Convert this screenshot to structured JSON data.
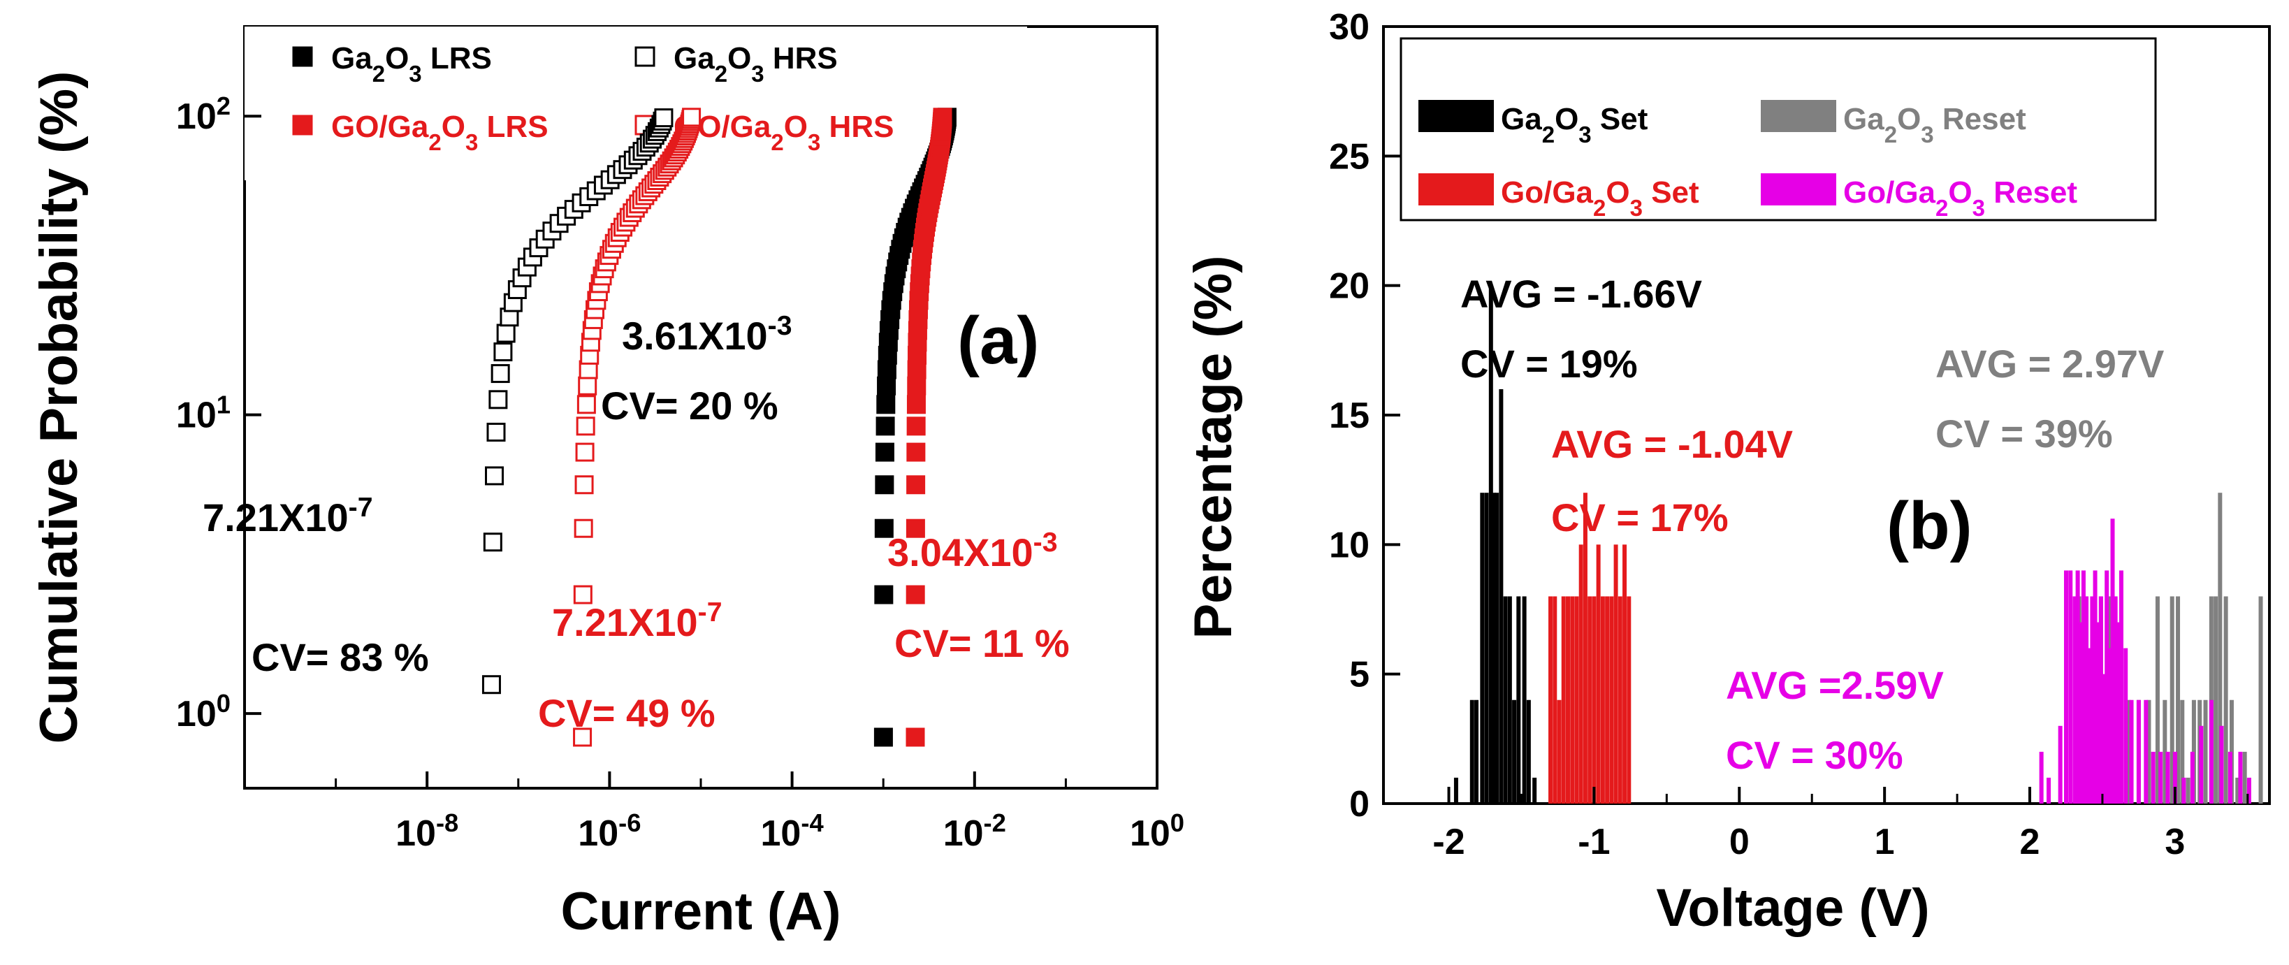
{
  "chart_data": [
    {
      "panel": "(a)",
      "type": "scatter",
      "xlabel": "Current (A)",
      "ylabel": "Cumulative Probability (%)",
      "x_scale": "log",
      "y_scale": "log",
      "xlim_exp": [
        -10,
        0
      ],
      "ylim_exp": [
        -0.25,
        2.3
      ],
      "x_ticks": [
        {
          "exp": -8,
          "label": "10",
          "sup": "-8"
        },
        {
          "exp": -6,
          "label": "10",
          "sup": "-6"
        },
        {
          "exp": -4,
          "label": "10",
          "sup": "-4"
        },
        {
          "exp": -2,
          "label": "10",
          "sup": "-2"
        },
        {
          "exp": 0,
          "label": "10",
          "sup": "0"
        }
      ],
      "y_ticks": [
        {
          "exp": 0,
          "label": "10",
          "sup": "0"
        },
        {
          "exp": 1,
          "label": "10",
          "sup": "1"
        },
        {
          "exp": 2,
          "label": "10",
          "sup": "2"
        }
      ],
      "legend": [
        {
          "pre": "Ga",
          "sub1": "2",
          "mid": "O",
          "sub2": "3",
          "post": " LRS",
          "color": "#000000",
          "filled": true
        },
        {
          "pre": "Ga",
          "sub1": "2",
          "mid": "O",
          "sub2": "3",
          "post": " HRS",
          "color": "#000000",
          "filled": false
        },
        {
          "pre": "GO/Ga",
          "sub1": "2",
          "mid": "O",
          "sub2": "3",
          "post": " LRS",
          "color": "#e41a1c",
          "filled": true
        },
        {
          "pre": "GO/Ga",
          "sub1": "2",
          "mid": "O",
          "sub2": "3",
          "post": " HRS",
          "color": "#e41a1c",
          "filled": false
        }
      ],
      "series": [
        {
          "name": "Ga2O3 LRS",
          "color": "#000000",
          "filled": true,
          "log_x_min": -3.0,
          "log_x_max": -2.3,
          "n": 60
        },
        {
          "name": "Ga2O3 HRS",
          "color": "#000000",
          "filled": false,
          "log_x_min": -7.3,
          "log_x_max": -5.4,
          "n": 40
        },
        {
          "name": "GO/Ga2O3 LRS",
          "color": "#e41a1c",
          "filled": true,
          "log_x_min": -2.65,
          "log_x_max": -2.35,
          "n": 60
        },
        {
          "name": "GO/Ga2O3 HRS",
          "color": "#e41a1c",
          "filled": false,
          "log_x_min": -6.3,
          "log_x_max": -5.1,
          "n": 60
        }
      ],
      "annotations": [
        {
          "base": "3.61X10",
          "sup": "-3",
          "color": "#000000"
        },
        {
          "text": "CV= 20 %",
          "color": "#000000"
        },
        {
          "base": "7.21X10",
          "sup": "-7",
          "color": "#000000"
        },
        {
          "text": "CV= 83 %",
          "color": "#000000"
        },
        {
          "base": "7.21X10",
          "sup": "-7",
          "color": "#e41a1c"
        },
        {
          "text": "CV= 49 %",
          "color": "#e41a1c"
        },
        {
          "base": "3.04X10",
          "sup": "-3",
          "color": "#e41a1c"
        },
        {
          "text": "CV= 11 %",
          "color": "#e41a1c"
        }
      ]
    },
    {
      "panel": "(b)",
      "type": "bar",
      "xlabel": "Voltage (V)",
      "ylabel": "Percentage (%)",
      "xlim": [
        -2.45,
        3.65
      ],
      "ylim": [
        0,
        30
      ],
      "x_ticks": [
        "-2",
        "-1",
        "0",
        "1",
        "2",
        "3"
      ],
      "y_ticks": [
        "0",
        "5",
        "10",
        "15",
        "20",
        "25",
        "30"
      ],
      "legend": [
        {
          "pre": "Ga",
          "sub1": "2",
          "mid": "O",
          "sub2": "3",
          "post": " Set",
          "color": "#000000"
        },
        {
          "pre": "Ga",
          "sub1": "2",
          "mid": "O",
          "sub2": "3",
          "post": " Reset",
          "color": "#808080"
        },
        {
          "pre": "Go/Ga",
          "sub1": "2",
          "mid": "O",
          "sub2": "3",
          "post": " Set",
          "color": "#e41a1c"
        },
        {
          "pre": "Go/Ga",
          "sub1": "2",
          "mid": "O",
          "sub2": "3",
          "post": " Reset",
          "color": "#e600e6"
        }
      ],
      "series": [
        {
          "name": "Ga2O3 Set",
          "color": "#000000",
          "x": [
            -1.95,
            -1.84,
            -1.81,
            -1.77,
            -1.74,
            -1.71,
            -1.69,
            -1.67,
            -1.64,
            -1.61,
            -1.58,
            -1.55,
            -1.52,
            -1.48,
            -1.45,
            -1.41
          ],
          "y": [
            1,
            4,
            4,
            12,
            12,
            20,
            12,
            12,
            16,
            8,
            8,
            4,
            8,
            8,
            4,
            1
          ]
        },
        {
          "name": "Go/Ga2O3 Set",
          "color": "#e41a1c",
          "x": [
            -1.3,
            -1.27,
            -1.24,
            -1.21,
            -1.18,
            -1.15,
            -1.12,
            -1.09,
            -1.06,
            -1.03,
            -1.0,
            -0.97,
            -0.94,
            -0.91,
            -0.88,
            -0.85,
            -0.82,
            -0.79,
            -0.76
          ],
          "y": [
            8,
            8,
            4,
            8,
            8,
            8,
            8,
            10,
            12,
            8,
            8,
            10,
            8,
            8,
            8,
            10,
            8,
            10,
            8
          ]
        },
        {
          "name": "Ga2O3 Reset",
          "color": "#808080",
          "x": [
            2.34,
            2.38,
            2.43,
            2.49,
            2.55,
            2.62,
            2.68,
            2.75,
            2.82,
            2.88,
            2.93,
            2.98,
            3.02,
            3.05,
            3.09,
            3.13,
            3.17,
            3.21,
            3.25,
            3.28,
            3.31,
            3.35,
            3.39,
            3.43,
            3.48,
            3.59
          ],
          "y": [
            8,
            8,
            4,
            8,
            8,
            4,
            4,
            4,
            4,
            8,
            4,
            8,
            8,
            4,
            1,
            4,
            4,
            4,
            8,
            8,
            12,
            8,
            4,
            1,
            2,
            8
          ]
        },
        {
          "name": "Go/Ga2O3 Reset",
          "color": "#e600e6",
          "x": [
            2.08,
            2.13,
            2.21,
            2.25,
            2.28,
            2.31,
            2.33,
            2.35,
            2.37,
            2.39,
            2.41,
            2.43,
            2.45,
            2.47,
            2.49,
            2.51,
            2.53,
            2.55,
            2.57,
            2.59,
            2.61,
            2.63,
            2.66,
            2.7,
            2.75,
            2.8,
            2.85,
            2.9,
            2.95,
            3.0,
            3.06,
            3.12,
            3.18,
            3.25,
            3.32,
            3.38,
            3.45,
            3.51
          ],
          "y": [
            2,
            1,
            3,
            9,
            9,
            8,
            9,
            7,
            9,
            8,
            6,
            8,
            9,
            7,
            8,
            5,
            9,
            6,
            11,
            8,
            7,
            9,
            6,
            4,
            4,
            4,
            2,
            2,
            2,
            2,
            1,
            2,
            3,
            4,
            3,
            2,
            2,
            1
          ]
        }
      ],
      "annotations": [
        {
          "text": "AVG = -1.66V",
          "color": "#000000"
        },
        {
          "text": "CV = 19%",
          "color": "#000000"
        },
        {
          "text": "AVG = 2.97V",
          "color": "#808080"
        },
        {
          "text": "CV = 39%",
          "color": "#808080"
        },
        {
          "text": "AVG = -1.04V",
          "color": "#e41a1c"
        },
        {
          "text": "CV = 17%",
          "color": "#e41a1c"
        },
        {
          "text": "AVG =2.59V",
          "color": "#e600e6"
        },
        {
          "text": "CV = 30%",
          "color": "#e600e6"
        }
      ]
    }
  ]
}
